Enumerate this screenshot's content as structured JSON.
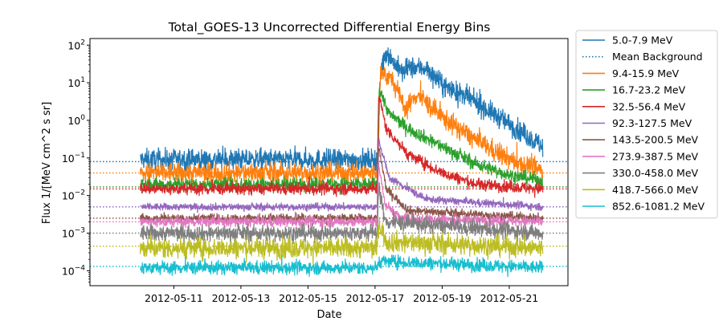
{
  "chart_data": {
    "type": "line",
    "title": "Total_GOES-13 Uncorrected Differential Energy Bins",
    "xlabel": "Date",
    "ylabel": "Flux 1/[MeV cm^2 s sr]",
    "yscale": "log",
    "xlim": [
      "2012-05-08T12:00",
      "2012-05-22T18:00"
    ],
    "ylim": [
      4e-05,
      150
    ],
    "x_ticks": [
      "2012-05-11",
      "2012-05-13",
      "2012-05-15",
      "2012-05-17",
      "2012-05-19",
      "2012-05-21"
    ],
    "y_ticks": [
      {
        "value": 0.0001,
        "base": "10",
        "exp": "−4"
      },
      {
        "value": 0.001,
        "base": "10",
        "exp": "−3"
      },
      {
        "value": 0.01,
        "base": "10",
        "exp": "−2"
      },
      {
        "value": 0.1,
        "base": "10",
        "exp": "−1"
      },
      {
        "value": 1,
        "base": "10",
        "exp": "0"
      },
      {
        "value": 10,
        "base": "10",
        "exp": "1"
      },
      {
        "value": 100,
        "base": "10",
        "exp": "2"
      }
    ],
    "grid": false,
    "legend_position": "outside-right",
    "event_onset": "2012-05-17T01:30",
    "data_end": "2012-05-22T00:00",
    "data_start": "2012-05-10T00:00",
    "series": [
      {
        "name": "5.0-7.9 MeV",
        "color": "#1f77b4",
        "quiet_level": 0.09,
        "peak": 70,
        "end_level": 0.2,
        "profile": [
          [
            "2012-05-17T01:30",
            0.09
          ],
          [
            "2012-05-17T04:00",
            20
          ],
          [
            "2012-05-17T08:00",
            70
          ],
          [
            "2012-05-17T12:00",
            40
          ],
          [
            "2012-05-17T20:00",
            18
          ],
          [
            "2012-05-18T00:00",
            25
          ],
          [
            "2012-05-18T12:00",
            25
          ],
          [
            "2012-05-19T00:00",
            9
          ],
          [
            "2012-05-20T00:00",
            3
          ],
          [
            "2012-05-21T00:00",
            0.8
          ],
          [
            "2012-05-22T00:00",
            0.2
          ]
        ]
      },
      {
        "name": "Mean Background",
        "color": "#1f77b4",
        "dotted": true,
        "values_by_band": [
          0.08,
          0.04,
          0.017,
          0.015,
          0.005,
          0.0025,
          0.002,
          0.001,
          0.00045,
          0.00013
        ]
      },
      {
        "name": "9.4-15.9 MeV",
        "color": "#ff7f0e",
        "quiet_level": 0.04,
        "peak": 20,
        "end_level": 0.045,
        "profile": [
          [
            "2012-05-17T01:30",
            0.04
          ],
          [
            "2012-05-17T04:00",
            20
          ],
          [
            "2012-05-17T12:00",
            12
          ],
          [
            "2012-05-17T22:00",
            2
          ],
          [
            "2012-05-18T06:00",
            5
          ],
          [
            "2012-05-19T00:00",
            1.2
          ],
          [
            "2012-05-20T00:00",
            0.3
          ],
          [
            "2012-05-21T00:00",
            0.09
          ],
          [
            "2012-05-22T00:00",
            0.045
          ]
        ]
      },
      {
        "name": "16.7-23.2 MeV",
        "color": "#2ca02c",
        "quiet_level": 0.02,
        "peak": 7,
        "end_level": 0.025,
        "profile": [
          [
            "2012-05-17T01:30",
            0.02
          ],
          [
            "2012-05-17T03:00",
            7
          ],
          [
            "2012-05-17T10:00",
            1.5
          ],
          [
            "2012-05-18T00:00",
            0.6
          ],
          [
            "2012-05-19T00:00",
            0.2
          ],
          [
            "2012-05-20T00:00",
            0.07
          ],
          [
            "2012-05-21T00:00",
            0.035
          ],
          [
            "2012-05-22T00:00",
            0.025
          ]
        ]
      },
      {
        "name": "32.5-56.4 MeV",
        "color": "#d62728",
        "quiet_level": 0.015,
        "peak": 5,
        "end_level": 0.015,
        "profile": [
          [
            "2012-05-17T01:30",
            0.015
          ],
          [
            "2012-05-17T02:30",
            5
          ],
          [
            "2012-05-17T08:00",
            0.6
          ],
          [
            "2012-05-18T00:00",
            0.12
          ],
          [
            "2012-05-19T00:00",
            0.04
          ],
          [
            "2012-05-20T00:00",
            0.02
          ],
          [
            "2012-05-22T00:00",
            0.015
          ]
        ]
      },
      {
        "name": "92.3-127.5 MeV",
        "color": "#9467bd",
        "quiet_level": 0.005,
        "peak": 0.3,
        "end_level": 0.005,
        "profile": [
          [
            "2012-05-17T01:30",
            0.005
          ],
          [
            "2012-05-17T02:30",
            0.3
          ],
          [
            "2012-05-17T10:00",
            0.03
          ],
          [
            "2012-05-18T12:00",
            0.008
          ],
          [
            "2012-05-22T00:00",
            0.005
          ]
        ]
      },
      {
        "name": "143.5-200.5 MeV",
        "color": "#8c564b",
        "quiet_level": 0.0025,
        "peak": 0.2,
        "end_level": 0.0025,
        "profile": [
          [
            "2012-05-17T01:30",
            0.0025
          ],
          [
            "2012-05-17T02:30",
            0.2
          ],
          [
            "2012-05-17T08:00",
            0.015
          ],
          [
            "2012-05-18T00:00",
            0.004
          ],
          [
            "2012-05-22T00:00",
            0.0025
          ]
        ]
      },
      {
        "name": "273.9-387.5 MeV",
        "color": "#e377c2",
        "quiet_level": 0.002,
        "peak": 0.08,
        "end_level": 0.002,
        "profile": [
          [
            "2012-05-17T01:30",
            0.002
          ],
          [
            "2012-05-17T02:30",
            0.08
          ],
          [
            "2012-05-17T07:00",
            0.006
          ],
          [
            "2012-05-17T18:00",
            0.0025
          ],
          [
            "2012-05-22T00:00",
            0.002
          ]
        ]
      },
      {
        "name": "330.0-458.0 MeV",
        "color": "#7f7f7f",
        "quiet_level": 0.001,
        "peak": 0.02,
        "end_level": 0.001,
        "profile": [
          [
            "2012-05-17T01:30",
            0.001
          ],
          [
            "2012-05-17T02:30",
            0.02
          ],
          [
            "2012-05-17T07:00",
            0.002
          ],
          [
            "2012-05-22T00:00",
            0.001
          ]
        ]
      },
      {
        "name": "418.7-566.0 MeV",
        "color": "#bcbd22",
        "quiet_level": 0.0004,
        "peak": 0.002,
        "end_level": 0.0004,
        "profile": [
          [
            "2012-05-17T01:30",
            0.0004
          ],
          [
            "2012-05-17T02:30",
            0.002
          ],
          [
            "2012-05-17T08:00",
            0.0006
          ],
          [
            "2012-05-22T00:00",
            0.0004
          ]
        ]
      },
      {
        "name": "852.6-1081.2 MeV",
        "color": "#17becf",
        "quiet_level": 0.00012,
        "peak": 0.00018,
        "end_level": 0.00012,
        "profile": [
          [
            "2012-05-17T01:30",
            0.00012
          ],
          [
            "2012-05-17T02:30",
            0.00018
          ],
          [
            "2012-05-22T00:00",
            0.00012
          ]
        ]
      }
    ]
  }
}
